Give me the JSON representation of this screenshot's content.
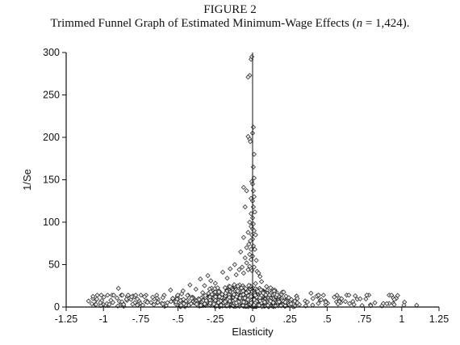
{
  "figure_label": "FIGURE 2",
  "title_parts": {
    "before": "Trimmed Funnel Graph of Estimated Minimum-Wage Effects (",
    "n_symbol": "n",
    "after": " = 1,424)."
  },
  "chart_data": {
    "type": "scatter",
    "title": "Trimmed Funnel Graph of Estimated Minimum-Wage Effects (n = 1,424).",
    "xlabel": "Elasticity",
    "ylabel": "1/Se",
    "xlim": [
      -1.25,
      1.25
    ],
    "ylim": [
      0,
      300
    ],
    "x_ticks": [
      -1.25,
      -1,
      -0.75,
      -0.5,
      -0.25,
      0,
      0.25,
      0.5,
      0.75,
      1,
      1.25
    ],
    "x_tick_labels": [
      "-1.25",
      "-1",
      "-.75",
      "-.5",
      "-.25",
      "0",
      ".25",
      ".5",
      ".75",
      "1",
      "1.25"
    ],
    "y_ticks": [
      0,
      50,
      100,
      150,
      200,
      250,
      300
    ],
    "y_tick_labels": [
      "0",
      "50",
      "100",
      "150",
      "200",
      "250",
      "300"
    ],
    "grid": false,
    "marker": "diamond-open",
    "reference_line_x": 0,
    "n": 1424,
    "points": [
      [
        -0.01,
        292
      ],
      [
        -0.005,
        295
      ],
      [
        -0.02,
        273
      ],
      [
        -0.03,
        271
      ],
      [
        0.005,
        212
      ],
      [
        0.0,
        205
      ],
      [
        -0.02,
        198
      ],
      [
        -0.03,
        201
      ],
      [
        -0.015,
        195
      ],
      [
        0.01,
        180
      ],
      [
        0.005,
        165
      ],
      [
        0.01,
        152
      ],
      [
        -0.005,
        148
      ],
      [
        -0.06,
        141
      ],
      [
        0.0,
        145
      ],
      [
        -0.04,
        137
      ],
      [
        0.005,
        137
      ],
      [
        0.01,
        130
      ],
      [
        -0.01,
        128
      ],
      [
        0.0,
        125
      ],
      [
        -0.05,
        118
      ],
      [
        0.005,
        118
      ],
      [
        -0.01,
        110
      ],
      [
        0.015,
        112
      ],
      [
        0.0,
        105
      ],
      [
        -0.02,
        100
      ],
      [
        0.005,
        98
      ],
      [
        -0.01,
        95
      ],
      [
        0.0,
        92
      ],
      [
        0.01,
        90
      ],
      [
        -0.03,
        88
      ],
      [
        -0.005,
        85
      ],
      [
        0.02,
        85
      ],
      [
        -0.06,
        82
      ],
      [
        0.0,
        80
      ],
      [
        -0.015,
        78
      ],
      [
        -0.025,
        74
      ],
      [
        0.005,
        72
      ],
      [
        -0.04,
        70
      ],
      [
        -0.01,
        68
      ],
      [
        0.015,
        68
      ],
      [
        -0.08,
        65
      ],
      [
        -0.02,
        62
      ],
      [
        0.0,
        60
      ],
      [
        -0.05,
        58
      ],
      [
        -0.01,
        56
      ],
      [
        0.025,
        55
      ],
      [
        -0.12,
        50
      ],
      [
        -0.04,
        52
      ],
      [
        -0.07,
        47
      ],
      [
        -0.02,
        48
      ],
      [
        0.01,
        47
      ],
      [
        -0.15,
        45
      ],
      [
        -0.09,
        44
      ],
      [
        -0.03,
        44
      ],
      [
        -0.005,
        43
      ],
      [
        0.03,
        42
      ],
      [
        -0.2,
        41
      ],
      [
        -0.06,
        40
      ],
      [
        0.04,
        40
      ],
      [
        -0.3,
        37
      ],
      [
        -0.11,
        38
      ],
      [
        -0.35,
        33
      ],
      [
        0.05,
        36
      ],
      [
        -0.28,
        31
      ],
      [
        -0.17,
        34
      ],
      [
        -0.42,
        26
      ],
      [
        -0.25,
        28
      ],
      [
        0.06,
        30
      ],
      [
        -0.55,
        20
      ],
      [
        -0.9,
        22
      ],
      [
        -0.38,
        21
      ],
      [
        0.3,
        10
      ],
      [
        0.65,
        4
      ],
      [
        1.1,
        2
      ],
      [
        0.9,
        4
      ],
      [
        0.82,
        5
      ],
      [
        -1.1,
        7
      ],
      [
        -1.05,
        3
      ],
      [
        -0.95,
        8
      ]
    ],
    "cloud": {
      "seed": 7,
      "count": 1344,
      "center_x": -0.03,
      "spread_left": 0.32,
      "spread_right": 0.22,
      "tail_weight": 0.12
    }
  }
}
